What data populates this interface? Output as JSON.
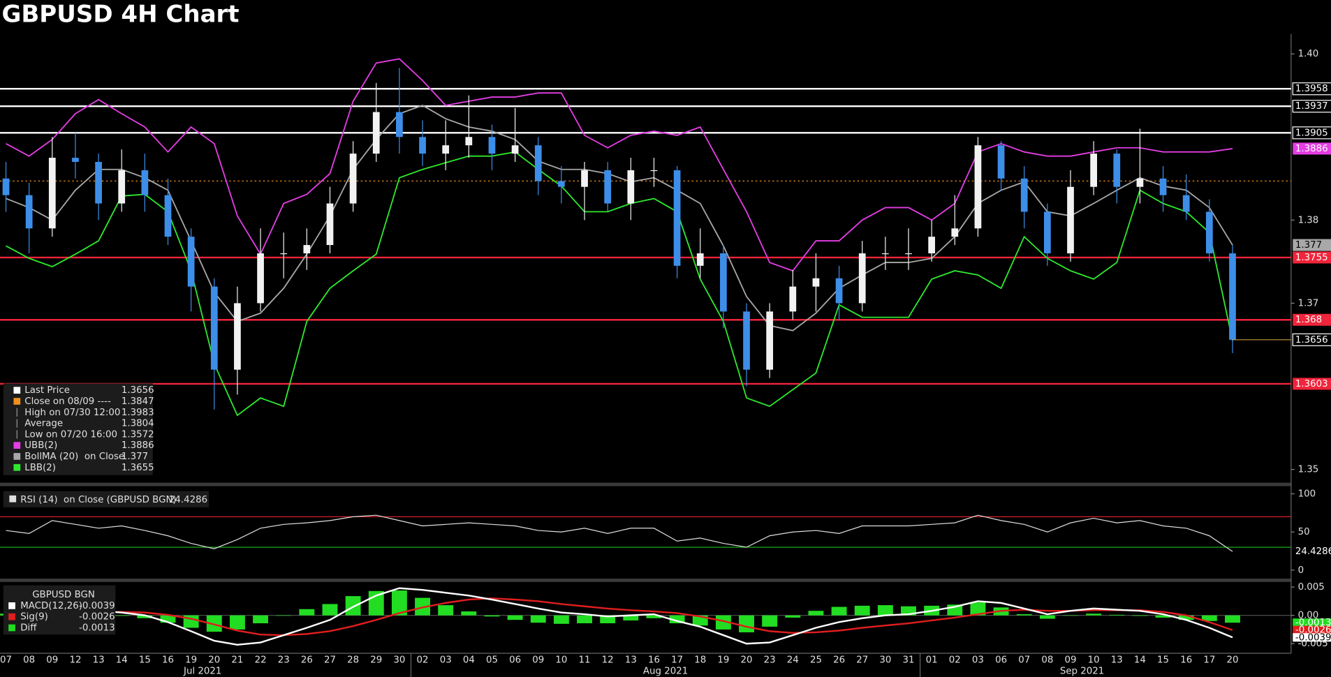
{
  "chart_data": [
    {
      "type": "candlestick",
      "title": "GBPUSD 4H Chart",
      "categories": [
        "07",
        "08",
        "09",
        "12",
        "13",
        "14",
        "15",
        "16",
        "19",
        "20",
        "21",
        "22",
        "23",
        "26",
        "27",
        "28",
        "29",
        "30",
        "02",
        "03",
        "04",
        "05",
        "06",
        "09",
        "10",
        "11",
        "12",
        "13",
        "16",
        "17",
        "18",
        "19",
        "20",
        "23",
        "24",
        "25",
        "26",
        "27",
        "30",
        "31",
        "01",
        "02",
        "03",
        "06",
        "07",
        "08",
        "09",
        "10",
        "13",
        "14",
        "15",
        "16",
        "17",
        "20"
      ],
      "months": [
        "Jul 2021",
        "Aug 2021",
        "Sep 2021"
      ],
      "open": [
        1.385,
        1.383,
        1.379,
        1.3875,
        1.387,
        1.382,
        1.386,
        1.383,
        1.378,
        1.372,
        1.362,
        1.37,
        1.376,
        1.376,
        1.377,
        1.382,
        1.388,
        1.393,
        1.39,
        1.388,
        1.389,
        1.39,
        1.388,
        1.389,
        1.3847,
        1.384,
        1.386,
        1.382,
        1.386,
        1.386,
        1.3745,
        1.376,
        1.369,
        1.362,
        1.369,
        1.372,
        1.373,
        1.37,
        1.376,
        1.376,
        1.376,
        1.378,
        1.379,
        1.389,
        1.385,
        1.381,
        1.376,
        1.384,
        1.388,
        1.384,
        1.385,
        1.383,
        1.381,
        1.376
      ],
      "high": [
        1.387,
        1.3845,
        1.39,
        1.3905,
        1.388,
        1.3885,
        1.388,
        1.385,
        1.379,
        1.373,
        1.372,
        1.379,
        1.3785,
        1.379,
        1.384,
        1.3895,
        1.3965,
        1.3983,
        1.392,
        1.392,
        1.395,
        1.3915,
        1.3935,
        1.39,
        1.3865,
        1.387,
        1.387,
        1.3875,
        1.3875,
        1.3865,
        1.379,
        1.377,
        1.37,
        1.37,
        1.374,
        1.376,
        1.3745,
        1.3775,
        1.378,
        1.379,
        1.38,
        1.383,
        1.39,
        1.3895,
        1.3865,
        1.382,
        1.386,
        1.3895,
        1.3885,
        1.391,
        1.3865,
        1.3855,
        1.3825,
        1.377
      ],
      "low": [
        1.381,
        1.376,
        1.378,
        1.385,
        1.38,
        1.381,
        1.381,
        1.377,
        1.369,
        1.3572,
        1.359,
        1.369,
        1.373,
        1.374,
        1.376,
        1.381,
        1.387,
        1.388,
        1.3865,
        1.386,
        1.3875,
        1.386,
        1.387,
        1.383,
        1.382,
        1.38,
        1.381,
        1.38,
        1.384,
        1.373,
        1.373,
        1.367,
        1.36,
        1.361,
        1.368,
        1.369,
        1.368,
        1.369,
        1.374,
        1.374,
        1.375,
        1.377,
        1.378,
        1.3835,
        1.379,
        1.3745,
        1.375,
        1.383,
        1.382,
        1.382,
        1.381,
        1.38,
        1.375,
        1.364
      ],
      "close": [
        1.383,
        1.379,
        1.3875,
        1.387,
        1.382,
        1.386,
        1.383,
        1.378,
        1.372,
        1.362,
        1.37,
        1.376,
        1.376,
        1.377,
        1.382,
        1.388,
        1.393,
        1.39,
        1.388,
        1.389,
        1.39,
        1.388,
        1.389,
        1.3847,
        1.384,
        1.386,
        1.382,
        1.386,
        1.386,
        1.3745,
        1.376,
        1.369,
        1.362,
        1.369,
        1.372,
        1.373,
        1.37,
        1.376,
        1.376,
        1.376,
        1.378,
        1.379,
        1.389,
        1.385,
        1.381,
        1.376,
        1.384,
        1.388,
        1.384,
        1.385,
        1.383,
        1.381,
        1.376,
        1.3656
      ],
      "up_color": "#f2f2f2",
      "down_color": "#3d8ee8",
      "last_color": "#c89b3c",
      "series": [
        {
          "name": "UBB(2)",
          "color": "#e43ee4",
          "values": [
            1.3892,
            1.3877,
            1.3897,
            1.3928,
            1.3945,
            1.3928,
            1.3912,
            1.3882,
            1.3912,
            1.3892,
            1.3805,
            1.3759,
            1.382,
            1.3831,
            1.3856,
            1.3943,
            1.3989,
            1.3994,
            1.3968,
            1.3938,
            1.3943,
            1.3948,
            1.3948,
            1.3953,
            1.3953,
            1.3902,
            1.3887,
            1.3902,
            1.3907,
            1.3902,
            1.3912,
            1.3861,
            1.381,
            1.3749,
            1.3739,
            1.3775,
            1.3775,
            1.38,
            1.3815,
            1.3815,
            1.38,
            1.382,
            1.3882,
            1.3892,
            1.3882,
            1.3877,
            1.3877,
            1.3882,
            1.3887,
            1.3887,
            1.3882,
            1.3882,
            1.3882,
            1.3886
          ]
        },
        {
          "name": "BollMA (20)  on Close",
          "color": "#a8a8a8",
          "values": [
            1.3826,
            1.3815,
            1.38,
            1.3836,
            1.3861,
            1.3861,
            1.3851,
            1.3836,
            1.3775,
            1.3713,
            1.3678,
            1.3688,
            1.3718,
            1.3759,
            1.3805,
            1.3861,
            1.3897,
            1.3928,
            1.3938,
            1.3922,
            1.3912,
            1.3907,
            1.3897,
            1.3871,
            1.3861,
            1.3861,
            1.3856,
            1.3846,
            1.3851,
            1.3836,
            1.382,
            1.3769,
            1.3708,
            1.3673,
            1.3667,
            1.3688,
            1.3718,
            1.3734,
            1.3749,
            1.3749,
            1.3754,
            1.378,
            1.382,
            1.3836,
            1.3846,
            1.381,
            1.3805,
            1.382,
            1.3836,
            1.3851,
            1.3841,
            1.3836,
            1.3815,
            1.377
          ]
        },
        {
          "name": "LBB(2)",
          "color": "#2ee82e",
          "values": [
            1.3769,
            1.3754,
            1.3744,
            1.3759,
            1.3775,
            1.3829,
            1.3831,
            1.381,
            1.3739,
            1.3627,
            1.3565,
            1.3586,
            1.3576,
            1.3678,
            1.3718,
            1.3739,
            1.3759,
            1.3851,
            1.3861,
            1.3869,
            1.3877,
            1.3877,
            1.3882,
            1.3861,
            1.3841,
            1.381,
            1.381,
            1.382,
            1.3826,
            1.381,
            1.3729,
            1.3678,
            1.3586,
            1.3576,
            1.3596,
            1.3616,
            1.3698,
            1.3683,
            1.3683,
            1.3683,
            1.3729,
            1.3739,
            1.3734,
            1.3718,
            1.378,
            1.3754,
            1.3739,
            1.3729,
            1.3749,
            1.3836,
            1.382,
            1.381,
            1.3785,
            1.3655
          ]
        }
      ],
      "legend": [
        {
          "label": "Last Price",
          "value": 1.3656,
          "color": "#ffffff"
        },
        {
          "label": "Close on 08/09 ----",
          "value": 1.3847,
          "color": "#f0901e"
        },
        {
          "label": "High on 07/30 12:00",
          "value": 1.3983
        },
        {
          "label": "Average",
          "value": 1.3804
        },
        {
          "label": "Low on 07/20 16:00",
          "value": 1.3572
        }
      ],
      "hlines": [
        {
          "value": 1.3958,
          "color": "#ffffff"
        },
        {
          "value": 1.3937,
          "color": "#ffffff"
        },
        {
          "value": 1.3905,
          "color": "#ffffff"
        },
        {
          "value": 1.3847,
          "color": "#f0901e",
          "style": "dotted"
        },
        {
          "value": 1.3755,
          "color": "#f0243a"
        },
        {
          "value": 1.368,
          "color": "#f0243a"
        },
        {
          "value": 1.3603,
          "color": "#f0243a"
        }
      ],
      "ylim": [
        1.3485,
        1.4024
      ],
      "yticks": [
        {
          "value": 1.4,
          "label": "1.40"
        },
        1.38,
        1.37,
        1.35
      ]
    },
    {
      "type": "line",
      "label": "RSI (14)  on Close (GBPUSD BGN)",
      "color": "#e0e0e0",
      "values": [
        52,
        48,
        65,
        60,
        55,
        58,
        52,
        45,
        35,
        28,
        40,
        55,
        60,
        62,
        65,
        70,
        72,
        65,
        58,
        60,
        62,
        60,
        58,
        52,
        50,
        55,
        48,
        55,
        55,
        38,
        42,
        35,
        30,
        45,
        50,
        52,
        48,
        58,
        58,
        58,
        60,
        62,
        72,
        65,
        60,
        50,
        62,
        68,
        62,
        65,
        58,
        55,
        45,
        24.4286
      ],
      "levels": [
        {
          "value": 70,
          "color": "#d0202a"
        },
        {
          "value": 30,
          "color": "#20c020"
        }
      ],
      "ylim": [
        -10,
        109
      ],
      "yticks": [
        100,
        50,
        0
      ]
    },
    {
      "type": "macd",
      "title": "GBPUSD BGN",
      "series": [
        {
          "name": "MACD(12,26)",
          "color": "#ffffff",
          "values": [
            0.0005,
            0.0,
            0.0008,
            0.0012,
            0.0008,
            0.0005,
            0.0,
            -0.0012,
            -0.0028,
            -0.0045,
            -0.0052,
            -0.0048,
            -0.0035,
            -0.0022,
            -0.0008,
            0.0015,
            0.0035,
            0.0048,
            0.0045,
            0.004,
            0.0035,
            0.0028,
            0.002,
            0.0012,
            0.0005,
            0.0002,
            -0.0002,
            0.0,
            0.0002,
            -0.001,
            -0.002,
            -0.0035,
            -0.005,
            -0.0048,
            -0.0035,
            -0.0022,
            -0.0012,
            -0.0005,
            0.0,
            0.0002,
            0.0008,
            0.0015,
            0.0025,
            0.0022,
            0.0012,
            0.0002,
            0.0008,
            0.0012,
            0.001,
            0.0008,
            0.0002,
            -0.0008,
            -0.0022,
            -0.0039
          ]
        },
        {
          "name": "Sig(9)",
          "color": "#e01e1e",
          "values": [
            0.0002,
            0.0002,
            0.0003,
            0.0005,
            0.0006,
            0.0006,
            0.0005,
            0.0001,
            -0.0006,
            -0.0016,
            -0.0027,
            -0.0034,
            -0.0035,
            -0.0033,
            -0.0028,
            -0.0019,
            -0.0008,
            0.0004,
            0.0014,
            0.0022,
            0.0028,
            0.003,
            0.0028,
            0.0025,
            0.002,
            0.0016,
            0.0012,
            0.0009,
            0.0007,
            0.0004,
            -0.0002,
            -0.001,
            -0.002,
            -0.0028,
            -0.0031,
            -0.003,
            -0.0027,
            -0.0022,
            -0.0018,
            -0.0014,
            -0.0009,
            -0.0004,
            0.0002,
            0.0008,
            0.001,
            0.0008,
            0.0008,
            0.0009,
            0.0009,
            0.0009,
            0.0006,
            0.0,
            -0.0012,
            -0.0026
          ]
        },
        {
          "name": "Diff",
          "color": "#22dd22",
          "values": [
            0.0003,
            -0.0002,
            0.0005,
            0.0007,
            0.0002,
            -0.0001,
            -0.0005,
            -0.0013,
            -0.0022,
            -0.0029,
            -0.0025,
            -0.0014,
            0.0,
            0.0011,
            0.002,
            0.0034,
            0.0043,
            0.0044,
            0.0031,
            0.0018,
            0.0007,
            -0.0002,
            -0.0008,
            -0.0013,
            -0.0015,
            -0.0014,
            -0.0014,
            -0.0009,
            -0.0005,
            -0.0014,
            -0.0018,
            -0.0025,
            -0.003,
            -0.002,
            -0.0004,
            0.0008,
            0.0015,
            0.0017,
            0.0018,
            0.0016,
            0.0017,
            0.0019,
            0.0023,
            0.0014,
            0.0002,
            -0.0006,
            0.0,
            0.0003,
            0.0001,
            -0.0001,
            -0.0004,
            -0.0008,
            -0.001,
            -0.0013
          ]
        }
      ],
      "ylim": [
        -0.0064,
        0.0059
      ],
      "yticks": [
        0.005,
        {
          "value": 0,
          "label": "0.00"
        },
        -0.005
      ]
    }
  ]
}
